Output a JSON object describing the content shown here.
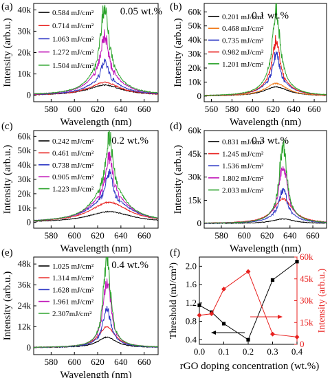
{
  "chart_data": [
    {
      "panel": "(a)",
      "type": "line",
      "annotation": "0.05 wt.%",
      "xlabel": "Wavelength (nm)",
      "ylabel": "Intensity (arb.u.)",
      "xlim": [
        565,
        672
      ],
      "ylim": [
        -3000,
        43000
      ],
      "xticks": [
        580,
        600,
        620,
        640,
        660
      ],
      "yticks": [
        0,
        10000,
        20000,
        30000,
        40000
      ],
      "ytick_labels": [
        "0",
        "10k",
        "20k",
        "30k",
        "40k"
      ],
      "peak_center": 626,
      "line_width": 11,
      "legend_position": "top-left",
      "series": [
        {
          "name": "0.584 mJ/cm²",
          "color": "#000000",
          "peak": 4800
        },
        {
          "name": "0.714 mJ/cm²",
          "color": "#e8211f",
          "peak": 6000
        },
        {
          "name": "1.063 mJ/cm²",
          "color": "#2b35c4",
          "peak": 16500
        },
        {
          "name": "1.272 mJ/cm²",
          "color": "#c016b8",
          "peak": 28000
        },
        {
          "name": "1.504 mJ/cm²",
          "color": "#2aa22a",
          "peak": 41000
        }
      ]
    },
    {
      "panel": "(b)",
      "type": "line",
      "annotation": "0.1 wt.%",
      "xlabel": "Wavelength (nm)",
      "ylabel": "Intensity (arb.u.)",
      "xlim": [
        553,
        672
      ],
      "ylim": [
        -4000,
        66000
      ],
      "xticks": [
        560,
        580,
        600,
        620,
        640,
        660
      ],
      "yticks": [
        0,
        10000,
        20000,
        30000,
        40000,
        50000,
        60000
      ],
      "ytick_labels": [
        "0",
        "10k",
        "20k",
        "30k",
        "40k",
        "50k",
        "60k"
      ],
      "peak_center": 623,
      "line_width": 9,
      "legend_position": "top-left",
      "series": [
        {
          "name": "0.201 mJ/cm²",
          "color": "#000000",
          "peak": 6500
        },
        {
          "name": "0.468 mJ/cm²",
          "color": "#f07a1a",
          "peak": 9000
        },
        {
          "name": "0.735 mJ/cm²",
          "color": "#2b35c4",
          "peak": 30000
        },
        {
          "name": "0.982 mJ/cm²",
          "color": "#e8211f",
          "peak": 40000
        },
        {
          "name": "1.201 mJ/cm²",
          "color": "#2aa22a",
          "peak": 62000
        }
      ]
    },
    {
      "panel": "(c)",
      "type": "line",
      "annotation": "0.2 wt.%",
      "xlabel": "Wavelength (nm)",
      "ylabel": "Intensity (arb.u.)",
      "xlim": [
        565,
        672
      ],
      "ylim": [
        -4000,
        64000
      ],
      "xticks": [
        580,
        600,
        620,
        640,
        660
      ],
      "yticks": [
        0,
        10000,
        20000,
        30000,
        40000,
        50000,
        60000
      ],
      "ytick_labels": [
        "0",
        "10k",
        "20k",
        "30k",
        "40k",
        "50k",
        "60k"
      ],
      "peak_center": 630,
      "line_width": 14,
      "legend_position": "top-left",
      "series": [
        {
          "name": "0.242 mJ/cm²",
          "color": "#000000",
          "peak": 7500
        },
        {
          "name": "0.461 mJ/cm²",
          "color": "#e8211f",
          "peak": 14000
        },
        {
          "name": "0.738 mJ/cm²",
          "color": "#2b35c4",
          "peak": 35000
        },
        {
          "name": "0.905 mJ/cm²",
          "color": "#c016b8",
          "peak": 45000
        },
        {
          "name": "1.223 mJ/cm²",
          "color": "#2aa22a",
          "peak": 60000
        }
      ]
    },
    {
      "panel": "(d)",
      "type": "line",
      "annotation": "0.3 wt.%",
      "xlabel": "Wavelength (nm)",
      "ylabel": "Intensity (arb.u.)",
      "xlim": [
        565,
        672
      ],
      "ylim": [
        -3000,
        60000
      ],
      "xticks": [
        580,
        600,
        620,
        640,
        660
      ],
      "yticks": [
        0,
        15000,
        30000,
        45000,
        60000
      ],
      "ytick_labels": [
        "0",
        "15k",
        "30k",
        "45k",
        "60k"
      ],
      "peak_center": 634,
      "line_width": 7,
      "legend_position": "top-left",
      "series": [
        {
          "name": "0.831 mJ/cm²",
          "color": "#000000",
          "peak": 3000
        },
        {
          "name": "1.245 mJ/cm²",
          "color": "#e8211f",
          "peak": 16000
        },
        {
          "name": "1.536 mJ/cm²",
          "color": "#2b35c4",
          "peak": 22000
        },
        {
          "name": "1.802 mJ/cm²",
          "color": "#c016b8",
          "peak": 38000
        },
        {
          "name": "2.033 mJ/cm²",
          "color": "#2aa22a",
          "peak": 50000
        }
      ]
    },
    {
      "panel": "(e)",
      "type": "line",
      "annotation": "0.4 wt.%",
      "xlabel": "Wavelength (nm)",
      "ylabel": "Intensity (arb.u.)",
      "xlim": [
        565,
        672
      ],
      "ylim": [
        -4000,
        52000
      ],
      "xticks": [
        580,
        600,
        620,
        640,
        660
      ],
      "yticks": [
        0,
        12000,
        24000,
        36000,
        48000
      ],
      "ytick_labels": [
        "0",
        "12k",
        "24k",
        "36k",
        "48k"
      ],
      "peak_center": 628,
      "line_width": 6,
      "legend_position": "top-left",
      "series": [
        {
          "name": "1.025 mJ/cm²",
          "color": "#000000",
          "peak": 6000
        },
        {
          "name": "1.314 mJ/cm²",
          "color": "#e8211f",
          "peak": 12000
        },
        {
          "name": "1.628 mJ/cm²",
          "color": "#2b35c4",
          "peak": 22000
        },
        {
          "name": "1.961 mJ/cm²",
          "color": "#c016b8",
          "peak": 38000
        },
        {
          "name": "2.307mJ/cm²",
          "color": "#2aa22a",
          "peak": 50000
        }
      ]
    },
    {
      "panel": "(f)",
      "type": "line",
      "xlabel": "rGO doping concentration (wt.%)",
      "xlim": [
        0.0,
        0.4
      ],
      "xticks": [
        0.0,
        0.1,
        0.2,
        0.3,
        0.4
      ],
      "xtick_labels": [
        "0.0",
        "0.1",
        "0.2",
        "0.3",
        "0.4"
      ],
      "left_axis": {
        "label": "Threshold (mJ/cm²)",
        "ylim": [
          0.3,
          2.2
        ],
        "yticks": [
          0.4,
          0.8,
          1.2,
          1.6,
          2.0
        ],
        "ytick_labels": [
          "0.4",
          "0.8",
          "1.2",
          "1.6",
          "2.0"
        ],
        "color": "#000000"
      },
      "right_axis": {
        "label": "Intensity (arb.u.)",
        "ylim": [
          0,
          60000
        ],
        "yticks": [
          0,
          15000,
          30000,
          45000,
          60000
        ],
        "ytick_labels": [
          "0",
          "15k",
          "30k",
          "45k",
          "60k"
        ],
        "color": "#e8211f"
      },
      "series": [
        {
          "axis": "left",
          "color": "#000000",
          "x": [
            0.0,
            0.05,
            0.1,
            0.2,
            0.3,
            0.4
          ],
          "y": [
            1.15,
            1.0,
            0.75,
            0.4,
            1.7,
            2.1
          ]
        },
        {
          "axis": "right",
          "color": "#e8211f",
          "x": [
            0.0,
            0.05,
            0.1,
            0.2,
            0.3,
            0.4
          ],
          "y": [
            20000,
            21000,
            38000,
            50000,
            7000,
            5000
          ]
        }
      ]
    }
  ]
}
